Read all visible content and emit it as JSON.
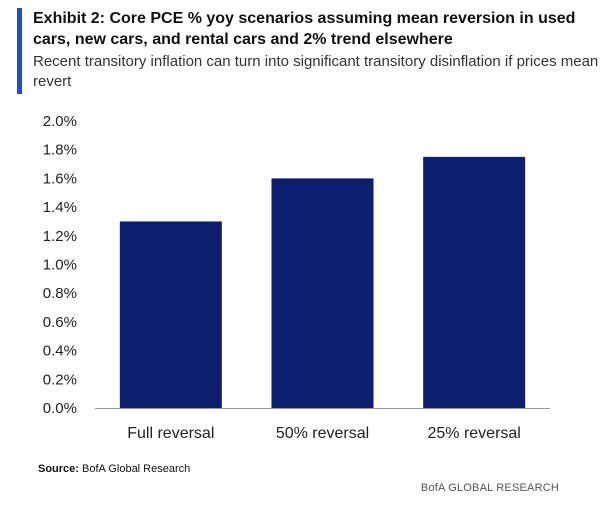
{
  "header": {
    "title": "Exhibit 2: Core PCE % yoy scenarios assuming mean reversion in used cars, new cars, and rental cars and 2% trend elsewhere",
    "subtitle": "Recent transitory inflation can turn into significant transitory disinflation if prices mean revert"
  },
  "footer": {
    "source_label": "Source:",
    "source_text": "BofA Global Research",
    "brand": "BofA GLOBAL RESEARCH"
  },
  "colors": {
    "bar": "#0c1f6e",
    "accent": "#1f4fcf"
  },
  "chart_data": {
    "type": "bar",
    "categories": [
      "Full reversal",
      "50% reversal",
      "25% reversal"
    ],
    "values": [
      1.3,
      1.6,
      1.75
    ],
    "ylim": [
      0,
      2.0
    ],
    "yticks": [
      "0.0%",
      "0.2%",
      "0.4%",
      "0.6%",
      "0.8%",
      "1.0%",
      "1.2%",
      "1.4%",
      "1.6%",
      "1.8%",
      "2.0%"
    ],
    "grid": false
  }
}
